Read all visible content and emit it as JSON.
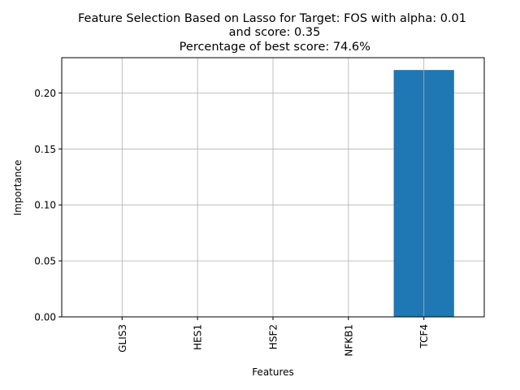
{
  "chart_data": {
    "type": "bar",
    "title": [
      "Feature Selection Based on Lasso for Target: FOS with alpha: 0.01",
      "and score: 0.35",
      " Percentage of best score: 74.6%"
    ],
    "xlabel": "Features",
    "ylabel": "Importance",
    "categories": [
      "GLIS3",
      "HES1",
      "HSF2",
      "NFKB1",
      "TCF4"
    ],
    "values": [
      0,
      0,
      0,
      0,
      0.2205
    ],
    "ylim": [
      0,
      0.2315
    ],
    "yticks": [
      0.0,
      0.05,
      0.1,
      0.15,
      0.2
    ],
    "ytick_labels": [
      "0.00",
      "0.05",
      "0.10",
      "0.15",
      "0.20"
    ],
    "grid": true,
    "bar_color": "#1f77b4"
  }
}
